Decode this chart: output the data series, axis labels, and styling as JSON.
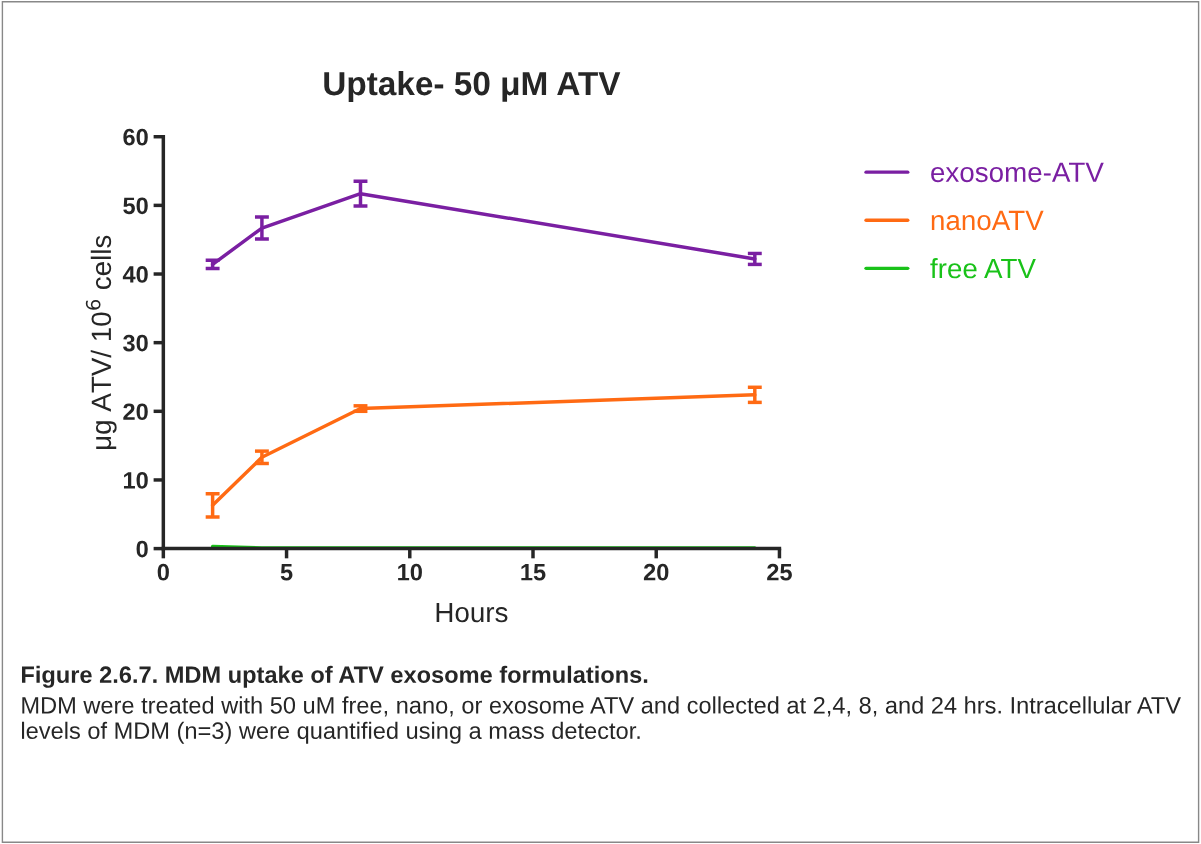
{
  "chart_data": {
    "type": "line",
    "title": "Uptake- 50 μM ATV",
    "xlabel": "Hours",
    "ylabel": "μg ATV/ 10$^{6}$ cells",
    "x": [
      2,
      4,
      8,
      24
    ],
    "series": [
      {
        "name": "exosome-ATV",
        "color": "#7a1fa2",
        "values": [
          41.4,
          46.7,
          51.7,
          42.2
        ],
        "errors": [
          0.6,
          1.6,
          1.8,
          0.8
        ]
      },
      {
        "name": "nanoATV",
        "color": "#ff6a13",
        "values": [
          6.3,
          13.3,
          20.4,
          22.4
        ],
        "errors": [
          1.7,
          0.9,
          0.4,
          1.1
        ]
      },
      {
        "name": "free ATV",
        "color": "#19c219",
        "values": [
          0.3,
          0.1,
          0.1,
          0.1
        ]
      }
    ],
    "xlim": [
      0,
      25
    ],
    "xticks": [
      0,
      5,
      10,
      15,
      20,
      25
    ],
    "ylim": [
      0,
      60
    ],
    "yticks": [
      0,
      10,
      20,
      30,
      40,
      50,
      60
    ],
    "grid": false,
    "legend": "right",
    "marker": "none",
    "line_style": "solid",
    "annotations": [
      "Figure 2.6.7. MDM uptake of ATV exosome formulations.",
      "MDM were treated with 50 uM free, nano, or exosome ATV and collected at 2,4, 8, and 24 hrs. Intracellular ATV levels of MDM (n=3) were quantified using a mass detector."
    ]
  }
}
